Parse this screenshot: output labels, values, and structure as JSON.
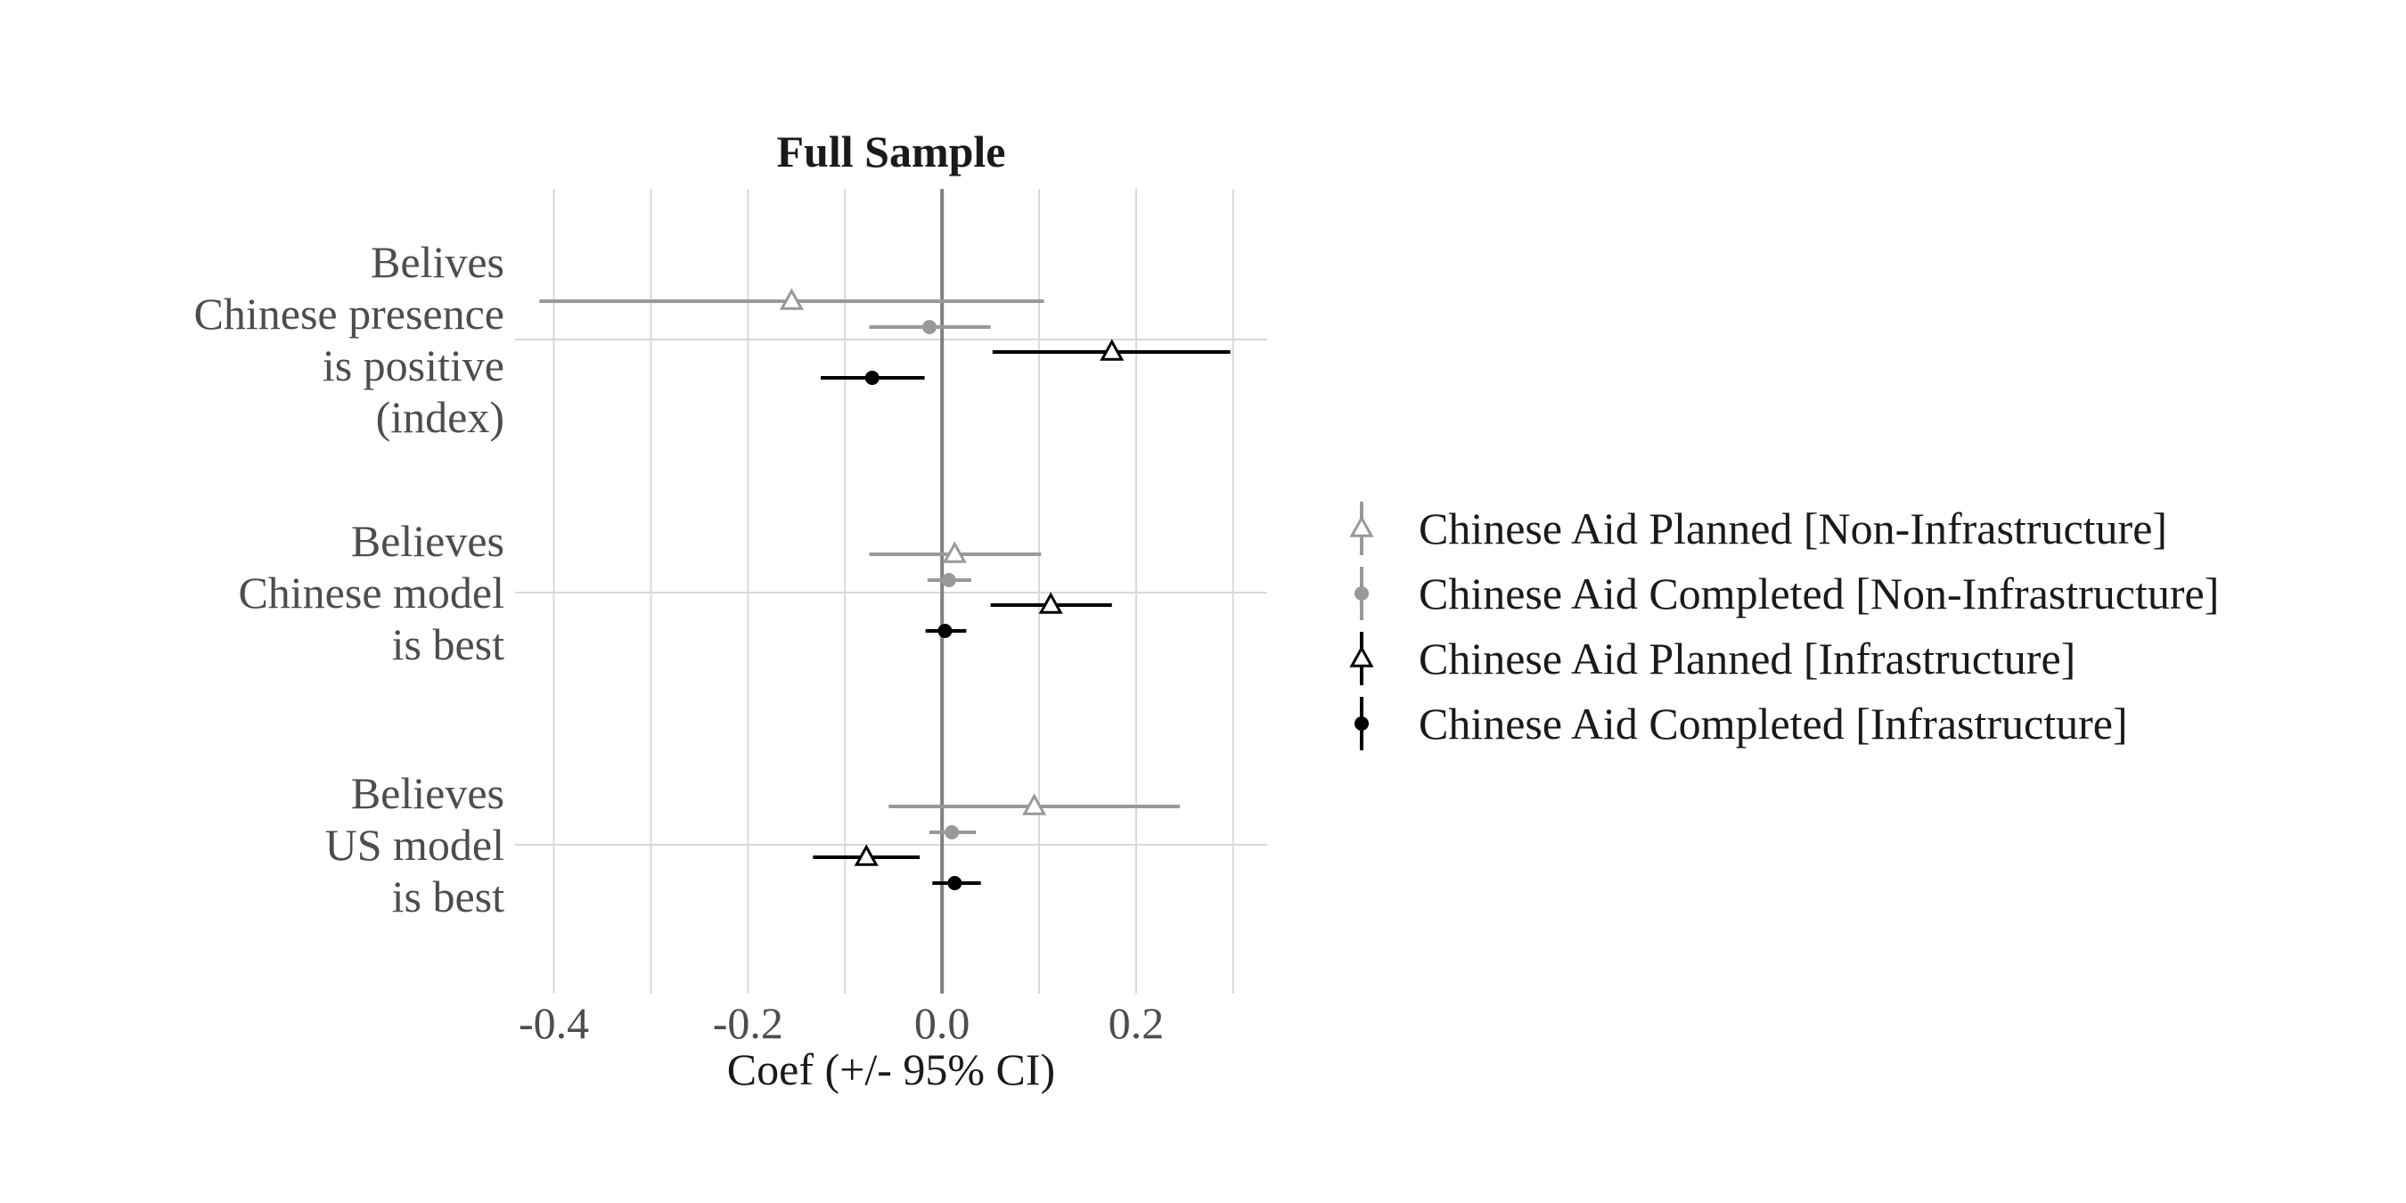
{
  "chart_data": {
    "type": "coefficient-plot",
    "title": "Full Sample",
    "xlabel": "Coef (+/- 95% CI)",
    "xlim": [
      -0.44,
      0.335
    ],
    "x_ticks": [
      -0.4,
      -0.2,
      0.0,
      0.2
    ],
    "x_tick_labels": [
      "-0.4",
      "-0.2",
      "0.0",
      "0.2"
    ],
    "grid": true,
    "zero_line": 0.0,
    "legend_position": "right",
    "categories": [
      {
        "label_lines": [
          "Belives",
          "Chinese presence",
          "is positive",
          "(index)"
        ]
      },
      {
        "label_lines": [
          "Believes",
          "Chinese model",
          "is best"
        ]
      },
      {
        "label_lines": [
          "Believes",
          "US model",
          "is best"
        ]
      }
    ],
    "series": [
      {
        "name": "Chinese Aid Planned [Non-Infrastructure]",
        "color": "#999999",
        "marker": "open-triangle",
        "points": [
          {
            "estimate": -0.155,
            "ci_low": -0.415,
            "ci_high": 0.105
          },
          {
            "estimate": 0.013,
            "ci_low": -0.075,
            "ci_high": 0.102
          },
          {
            "estimate": 0.095,
            "ci_low": -0.055,
            "ci_high": 0.245
          }
        ]
      },
      {
        "name": "Chinese Aid Completed [Non-Infrastructure]",
        "color": "#999999",
        "marker": "filled-circle",
        "points": [
          {
            "estimate": -0.013,
            "ci_low": -0.075,
            "ci_high": 0.05
          },
          {
            "estimate": 0.007,
            "ci_low": -0.015,
            "ci_high": 0.03
          },
          {
            "estimate": 0.01,
            "ci_low": -0.013,
            "ci_high": 0.035
          }
        ]
      },
      {
        "name": "Chinese Aid Planned [Infrastructure]",
        "color": "#000000",
        "marker": "open-triangle",
        "points": [
          {
            "estimate": 0.175,
            "ci_low": 0.052,
            "ci_high": 0.297
          },
          {
            "estimate": 0.112,
            "ci_low": 0.05,
            "ci_high": 0.175
          },
          {
            "estimate": -0.078,
            "ci_low": -0.133,
            "ci_high": -0.023
          }
        ]
      },
      {
        "name": "Chinese Aid Completed [Infrastructure]",
        "color": "#000000",
        "marker": "filled-circle",
        "points": [
          {
            "estimate": -0.072,
            "ci_low": -0.125,
            "ci_high": -0.018
          },
          {
            "estimate": 0.003,
            "ci_low": -0.017,
            "ci_high": 0.025
          },
          {
            "estimate": 0.013,
            "ci_low": -0.01,
            "ci_high": 0.04
          }
        ]
      }
    ]
  }
}
